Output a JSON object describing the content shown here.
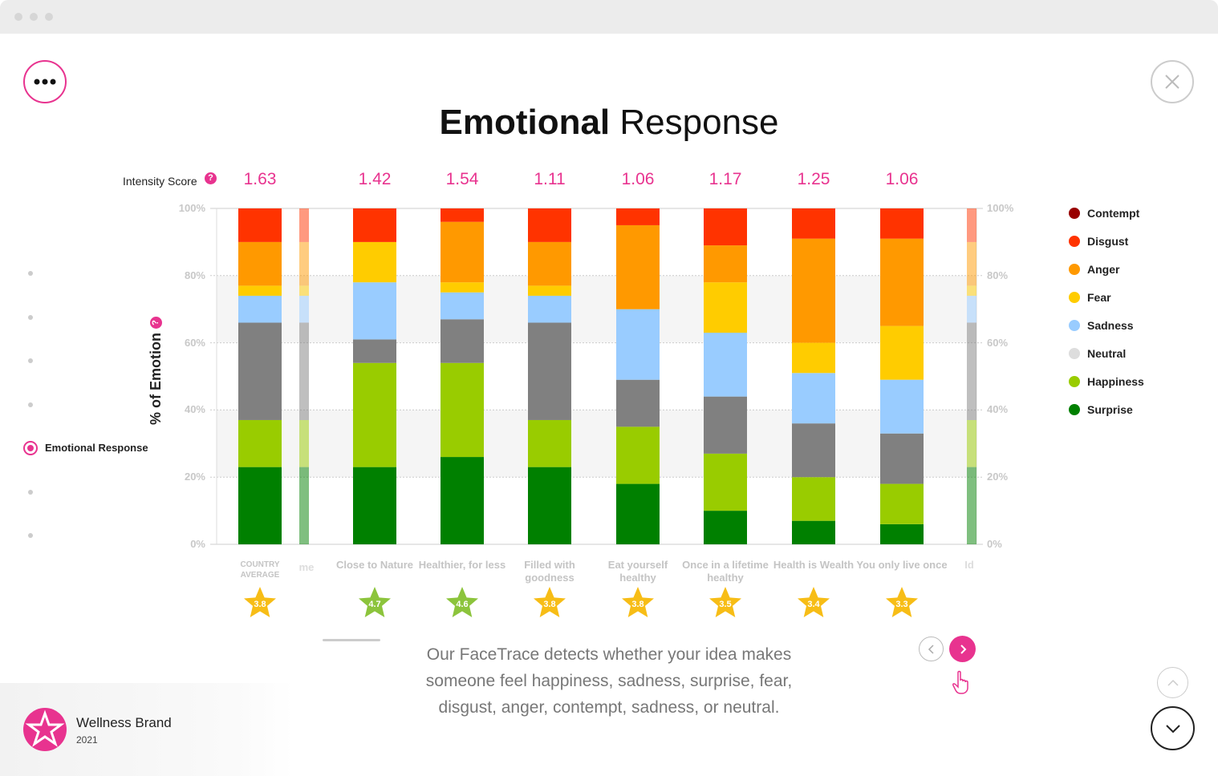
{
  "window": {
    "title_dots": 3
  },
  "header": {
    "title_bold": "Emotional",
    "title_rest": " Response",
    "menu_icon": "more-dots-icon",
    "close_icon": "close-icon"
  },
  "intensity": {
    "label": "Intensity Score",
    "help": "?"
  },
  "side_nav": {
    "active_label": "Emotional Response"
  },
  "chart_data": {
    "type": "bar",
    "stacked": true,
    "ylabel": "% of Emotion",
    "ylabel_help": "?",
    "ylim": [
      0,
      100
    ],
    "yticks": [
      "0%",
      "20%",
      "40%",
      "60%",
      "80%",
      "100%"
    ],
    "categories": [
      "COUNTRY AVERAGE",
      "Close to Nature",
      "Healthier, for less",
      "Filled with goodness",
      "Eat yourself healthy",
      "Once in a lifetime healthy",
      "Health is Wealth",
      "You only live once"
    ],
    "clipped_labels": [
      "me",
      "Id"
    ],
    "intensity_scores": [
      "1.63",
      "1.42",
      "1.54",
      "1.11",
      "1.06",
      "1.17",
      "1.25",
      "1.06"
    ],
    "ratings": [
      "3.8",
      "4.7",
      "4.6",
      "3.8",
      "3.8",
      "3.5",
      "3.4",
      "3.3"
    ],
    "series": [
      {
        "name": "Surprise",
        "color": "#008000",
        "values": [
          23,
          23,
          26,
          23,
          18,
          10,
          7,
          6
        ]
      },
      {
        "name": "Happiness",
        "color": "#99cc00",
        "values": [
          14,
          31,
          28,
          14,
          17,
          17,
          13,
          12
        ]
      },
      {
        "name": "Neutral",
        "color": "#808080",
        "legend_color": "#dddddd",
        "values": [
          29,
          7,
          13,
          29,
          14,
          17,
          16,
          15
        ]
      },
      {
        "name": "Sadness",
        "color": "#99ccff",
        "values": [
          8,
          17,
          8,
          8,
          21,
          19,
          15,
          16
        ]
      },
      {
        "name": "Fear",
        "color": "#ffcc00",
        "values": [
          3,
          12,
          3,
          3,
          0,
          15,
          9,
          16
        ]
      },
      {
        "name": "Anger",
        "color": "#ff9900",
        "values": [
          13,
          0,
          18,
          13,
          25,
          11,
          31,
          26
        ]
      },
      {
        "name": "Disgust",
        "color": "#ff3300",
        "values": [
          10,
          10,
          4,
          10,
          5,
          11,
          9,
          9
        ]
      },
      {
        "name": "Contempt",
        "color": "#990000",
        "values": [
          0,
          0,
          0,
          0,
          0,
          0,
          0,
          0
        ]
      }
    ],
    "legend_order": [
      "Contempt",
      "Disgust",
      "Anger",
      "Fear",
      "Sadness",
      "Neutral",
      "Happiness",
      "Surprise"
    ],
    "legend": "right",
    "grid": true
  },
  "description": [
    "Our FaceTrace detects whether your idea makes",
    "someone feel happiness, sadness, surprise, fear,",
    "disgust, anger, contempt, sadness, or neutral."
  ],
  "brand": {
    "name": "Wellness Brand",
    "year": "2021"
  },
  "colors": {
    "accent": "#e8338f",
    "star_yellow": "#f7bd16",
    "star_green": "#8cc43c"
  }
}
